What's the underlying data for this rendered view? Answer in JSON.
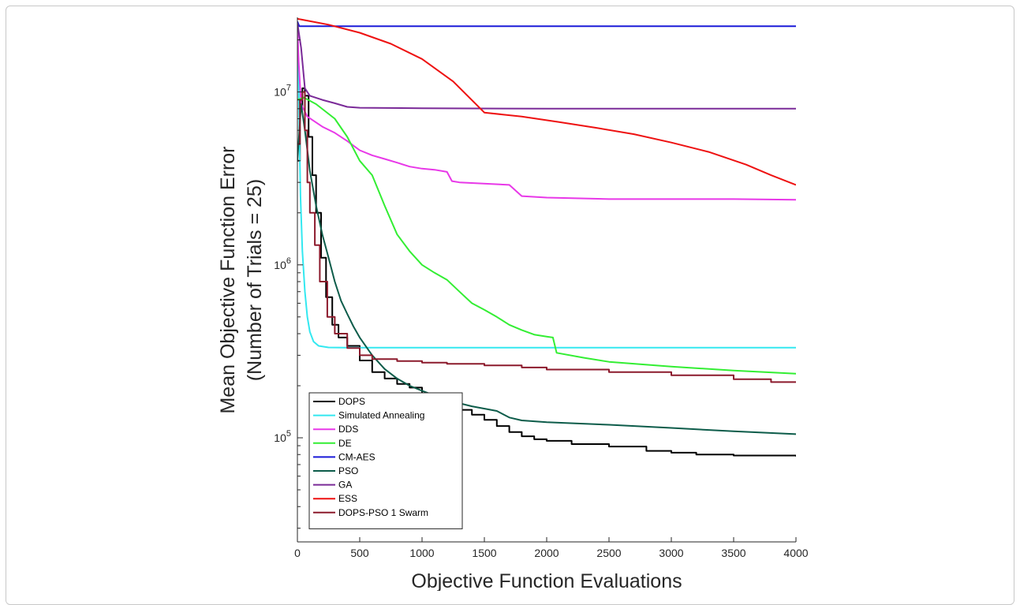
{
  "chart_data": {
    "type": "line",
    "xlabel": "Objective Function Evaluations",
    "ylabel": [
      "Mean Objective Function Error",
      "(Number of Trials = 25)"
    ],
    "xlim": [
      0,
      4000
    ],
    "ylim": [
      25000,
      27000000
    ],
    "yscale": "log",
    "grid": false,
    "legend_position": "bottom-left",
    "x_ticks": [
      0,
      500,
      1000,
      1500,
      2000,
      2500,
      3000,
      3500,
      4000
    ],
    "x_tick_labels": [
      "0",
      "500",
      "1000",
      "1500",
      "2000",
      "2500",
      "3000",
      "3500",
      "4000"
    ],
    "y_ticks": [
      {
        "value": 100000,
        "base": "10",
        "exp": "5"
      },
      {
        "value": 1000000,
        "base": "10",
        "exp": "6"
      },
      {
        "value": 10000000,
        "base": "10",
        "exp": "7"
      }
    ],
    "series": [
      {
        "name": "DOPS",
        "color": "#000000",
        "step": true,
        "width": 2,
        "points": [
          [
            0,
            4000000
          ],
          [
            20,
            8000000
          ],
          [
            40,
            10500000
          ],
          [
            60,
            9500000
          ],
          [
            90,
            5500000
          ],
          [
            120,
            3300000
          ],
          [
            150,
            2000000
          ],
          [
            190,
            1100000
          ],
          [
            230,
            650000
          ],
          [
            280,
            450000
          ],
          [
            330,
            380000
          ],
          [
            400,
            340000
          ],
          [
            500,
            280000
          ],
          [
            600,
            240000
          ],
          [
            700,
            220000
          ],
          [
            800,
            205000
          ],
          [
            900,
            195000
          ],
          [
            1000,
            180000
          ],
          [
            1100,
            168000
          ],
          [
            1200,
            155000
          ],
          [
            1300,
            145000
          ],
          [
            1400,
            136000
          ],
          [
            1500,
            127000
          ],
          [
            1600,
            117000
          ],
          [
            1700,
            108000
          ],
          [
            1800,
            102000
          ],
          [
            1900,
            98000
          ],
          [
            2000,
            96000
          ],
          [
            2200,
            92000
          ],
          [
            2500,
            89000
          ],
          [
            2800,
            84000
          ],
          [
            3000,
            82000
          ],
          [
            3200,
            80000
          ],
          [
            3500,
            79000
          ],
          [
            4000,
            78000
          ]
        ]
      },
      {
        "name": "Simulated Annealing",
        "color": "#33e8f0",
        "step": false,
        "width": 2,
        "points": [
          [
            0,
            24000000
          ],
          [
            8,
            15000000
          ],
          [
            15,
            6000000
          ],
          [
            25,
            2500000
          ],
          [
            40,
            1200000
          ],
          [
            60,
            700000
          ],
          [
            80,
            500000
          ],
          [
            100,
            410000
          ],
          [
            130,
            360000
          ],
          [
            170,
            340000
          ],
          [
            250,
            333000
          ],
          [
            400,
            332000
          ],
          [
            4000,
            332000
          ]
        ]
      },
      {
        "name": "DDS",
        "color": "#e838e8",
        "step": false,
        "width": 2,
        "points": [
          [
            0,
            25000000
          ],
          [
            10,
            15000000
          ],
          [
            30,
            8500000
          ],
          [
            80,
            7200000
          ],
          [
            200,
            6300000
          ],
          [
            300,
            5800000
          ],
          [
            400,
            5200000
          ],
          [
            500,
            4600000
          ],
          [
            600,
            4300000
          ],
          [
            700,
            4100000
          ],
          [
            800,
            3900000
          ],
          [
            900,
            3700000
          ],
          [
            1000,
            3600000
          ],
          [
            1100,
            3550000
          ],
          [
            1200,
            3450000
          ],
          [
            1240,
            3050000
          ],
          [
            1300,
            3000000
          ],
          [
            1700,
            2900000
          ],
          [
            1800,
            2500000
          ],
          [
            2000,
            2450000
          ],
          [
            2500,
            2400000
          ],
          [
            3000,
            2400000
          ],
          [
            3500,
            2400000
          ],
          [
            4000,
            2380000
          ]
        ]
      },
      {
        "name": "DE",
        "color": "#33ee33",
        "step": false,
        "width": 2,
        "points": [
          [
            0,
            9000000
          ],
          [
            50,
            9300000
          ],
          [
            150,
            8500000
          ],
          [
            300,
            7000000
          ],
          [
            400,
            5500000
          ],
          [
            500,
            4000000
          ],
          [
            600,
            3300000
          ],
          [
            700,
            2200000
          ],
          [
            800,
            1500000
          ],
          [
            900,
            1200000
          ],
          [
            1000,
            1000000
          ],
          [
            1100,
            900000
          ],
          [
            1200,
            820000
          ],
          [
            1300,
            700000
          ],
          [
            1400,
            600000
          ],
          [
            1500,
            550000
          ],
          [
            1600,
            500000
          ],
          [
            1700,
            450000
          ],
          [
            1800,
            420000
          ],
          [
            1900,
            395000
          ],
          [
            2000,
            385000
          ],
          [
            2050,
            380000
          ],
          [
            2080,
            310000
          ],
          [
            2300,
            290000
          ],
          [
            2500,
            275000
          ],
          [
            3000,
            258000
          ],
          [
            3500,
            245000
          ],
          [
            4000,
            235000
          ]
        ]
      },
      {
        "name": "CM-AES",
        "color": "#1a1ad8",
        "step": false,
        "width": 2,
        "points": [
          [
            0,
            25500000
          ],
          [
            15,
            24000000
          ],
          [
            4000,
            24000000
          ]
        ]
      },
      {
        "name": "PSO",
        "color": "#0d5c4a",
        "step": false,
        "width": 2,
        "points": [
          [
            0,
            4000000
          ],
          [
            30,
            8500000
          ],
          [
            60,
            6000000
          ],
          [
            100,
            3500000
          ],
          [
            150,
            2200000
          ],
          [
            200,
            1500000
          ],
          [
            250,
            1100000
          ],
          [
            300,
            800000
          ],
          [
            350,
            620000
          ],
          [
            400,
            520000
          ],
          [
            450,
            440000
          ],
          [
            500,
            380000
          ],
          [
            600,
            300000
          ],
          [
            700,
            250000
          ],
          [
            800,
            220000
          ],
          [
            900,
            200000
          ],
          [
            1000,
            187000
          ],
          [
            1200,
            165000
          ],
          [
            1400,
            152000
          ],
          [
            1600,
            143000
          ],
          [
            1700,
            131000
          ],
          [
            1800,
            126000
          ],
          [
            2000,
            123000
          ],
          [
            2500,
            119000
          ],
          [
            3000,
            114000
          ],
          [
            3500,
            109000
          ],
          [
            4000,
            105000
          ]
        ]
      },
      {
        "name": "GA",
        "color": "#7a2a98",
        "step": false,
        "width": 2,
        "points": [
          [
            0,
            25000000
          ],
          [
            30,
            18000000
          ],
          [
            60,
            10500000
          ],
          [
            100,
            9500000
          ],
          [
            200,
            9000000
          ],
          [
            300,
            8600000
          ],
          [
            400,
            8200000
          ],
          [
            500,
            8100000
          ],
          [
            1000,
            8050000
          ],
          [
            2000,
            8000000
          ],
          [
            3000,
            8000000
          ],
          [
            4000,
            8000000
          ]
        ]
      },
      {
        "name": "ESS",
        "color": "#ee1111",
        "step": false,
        "width": 2,
        "points": [
          [
            0,
            26500000
          ],
          [
            250,
            24500000
          ],
          [
            500,
            22000000
          ],
          [
            750,
            19000000
          ],
          [
            1000,
            15500000
          ],
          [
            1250,
            11500000
          ],
          [
            1500,
            7600000
          ],
          [
            1800,
            7200000
          ],
          [
            2100,
            6700000
          ],
          [
            2400,
            6200000
          ],
          [
            2700,
            5700000
          ],
          [
            3000,
            5100000
          ],
          [
            3300,
            4500000
          ],
          [
            3600,
            3800000
          ],
          [
            3800,
            3300000
          ],
          [
            4000,
            2900000
          ]
        ]
      },
      {
        "name": "DOPS-PSO 1 Swarm",
        "color": "#8c1a2c",
        "step": true,
        "width": 2,
        "points": [
          [
            0,
            5000000
          ],
          [
            20,
            9000000
          ],
          [
            40,
            10000000
          ],
          [
            60,
            6000000
          ],
          [
            80,
            3000000
          ],
          [
            100,
            2000000
          ],
          [
            140,
            1300000
          ],
          [
            180,
            800000
          ],
          [
            240,
            500000
          ],
          [
            300,
            400000
          ],
          [
            400,
            330000
          ],
          [
            500,
            300000
          ],
          [
            600,
            285000
          ],
          [
            800,
            278000
          ],
          [
            1000,
            272000
          ],
          [
            1200,
            268000
          ],
          [
            1500,
            262000
          ],
          [
            1800,
            255000
          ],
          [
            2000,
            248000
          ],
          [
            2500,
            240000
          ],
          [
            3000,
            230000
          ],
          [
            3500,
            218000
          ],
          [
            3800,
            210000
          ],
          [
            4000,
            208000
          ]
        ]
      }
    ]
  }
}
